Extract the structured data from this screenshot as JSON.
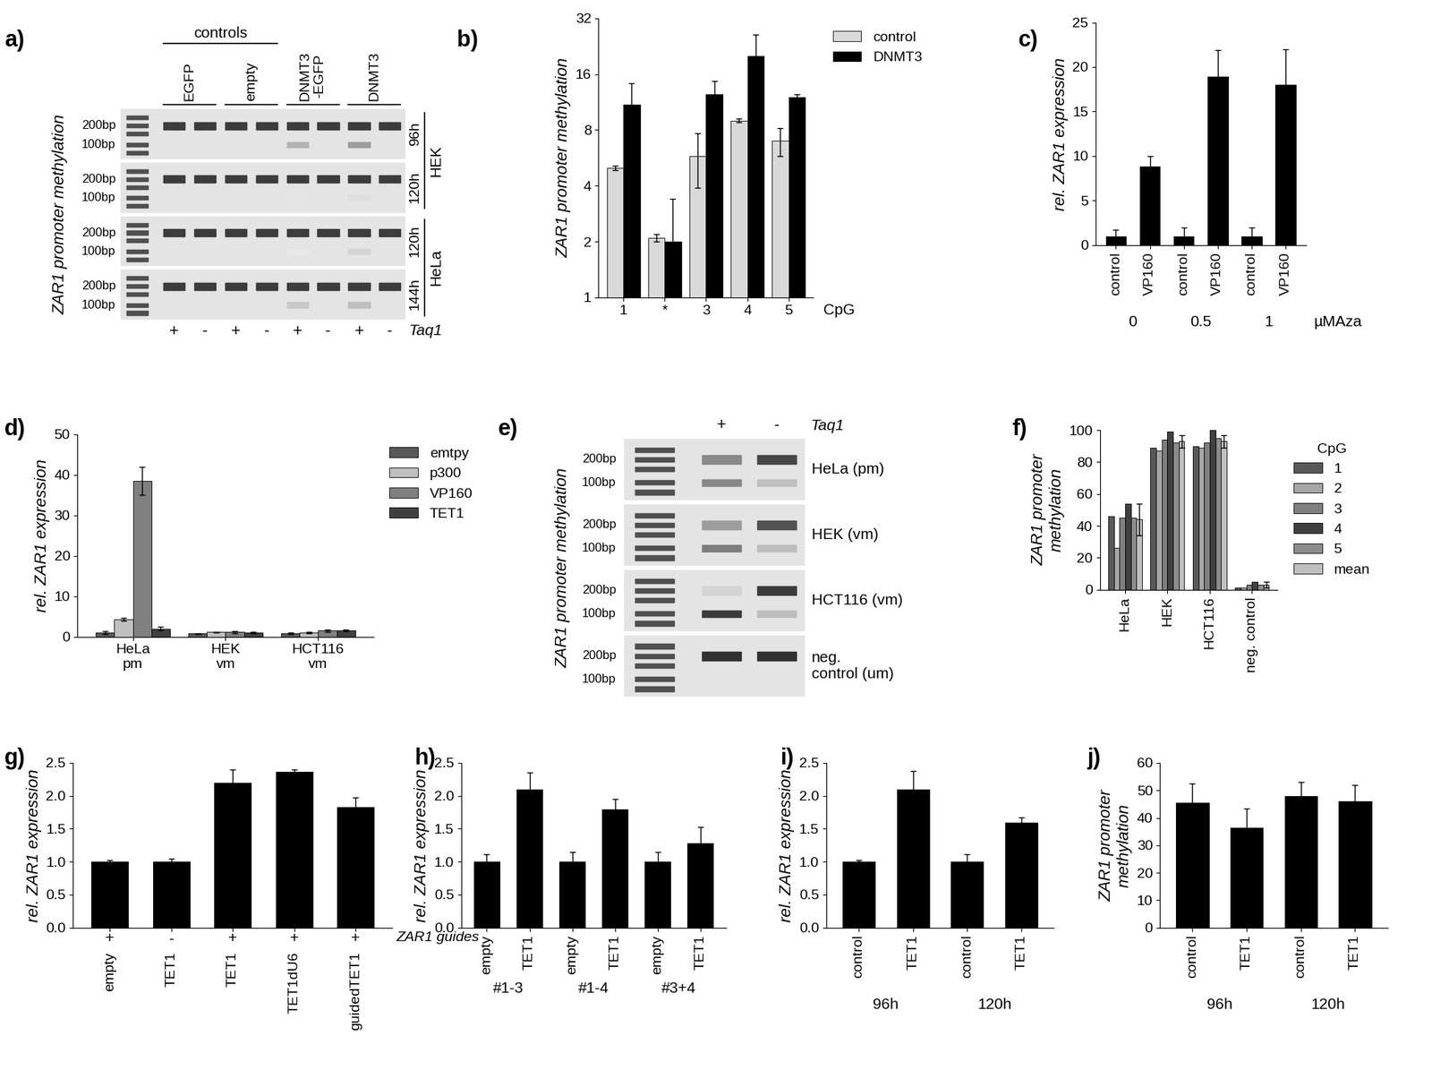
{
  "chart_data": [
    {
      "type": "gel",
      "title": "a)",
      "ylabel": "ZAR1 promoter methylation",
      "marker_labels": [
        "200bp",
        "100bp"
      ],
      "lanes": [
        "+",
        "-",
        "+",
        "-",
        "+",
        "-",
        "+",
        "-"
      ],
      "lane_axis_label": "Taq1",
      "column_groups": [
        "EGFP",
        "empty",
        "DNMT3\n-EGFP",
        "DNMT3"
      ],
      "column_supergroup": {
        "label": "controls",
        "groups": 2
      },
      "rows": [
        {
          "label": "96h",
          "upper": [
            0.9,
            0.9,
            0.9,
            0.9,
            0.9,
            0.9,
            0.9,
            0.9
          ],
          "lower": [
            0,
            0,
            0,
            0,
            0.35,
            0,
            0.45,
            0
          ]
        },
        {
          "label": "120h",
          "upper": [
            0.9,
            0.9,
            0.9,
            0.9,
            0.9,
            0.9,
            0.9,
            0.9
          ],
          "lower": [
            0,
            0,
            0,
            0,
            0.12,
            0,
            0.15,
            0
          ]
        },
        {
          "label": "120h",
          "upper": [
            0.9,
            0.9,
            0.9,
            0.9,
            0.9,
            0.9,
            0.9,
            0.9
          ],
          "lower": [
            0,
            0,
            0,
            0,
            0.1,
            0,
            0.2,
            0
          ]
        },
        {
          "label": "144h",
          "upper": [
            0.9,
            0.9,
            0.9,
            0.9,
            0.9,
            0.9,
            0.9,
            0.9
          ],
          "lower": [
            0,
            0,
            0,
            0,
            0.25,
            0,
            0.3,
            0
          ]
        }
      ],
      "row_groups": [
        {
          "label": "HEK",
          "rows": 2
        },
        {
          "label": "HeLa",
          "rows": 2
        }
      ]
    },
    {
      "type": "bar",
      "title": "b)",
      "ylabel": "ZAR1 promoter methylation",
      "log": true,
      "categories": [
        "1",
        "*",
        "3",
        "4",
        "5"
      ],
      "xlabel": "CpG",
      "series": [
        {
          "name": "control",
          "color": "#d9d9d9",
          "values": [
            5,
            2.1,
            5.8,
            9,
            7
          ],
          "errors": [
            0.15,
            0.1,
            1.9,
            0.2,
            1.2
          ]
        },
        {
          "name": "DNMT3",
          "color": "#000000",
          "values": [
            11,
            2,
            12.5,
            20,
            12
          ],
          "errors": [
            3.3,
            1.4,
            2.2,
            6,
            0.4
          ]
        }
      ],
      "ylim": [
        1,
        32
      ],
      "yticks": [
        1,
        2,
        4,
        8,
        16,
        32
      ],
      "legend": "upper left"
    },
    {
      "type": "bar",
      "title": "c)",
      "ylabel": "rel. ZAR1 expression",
      "categories": [
        "control",
        "VP160",
        "control",
        "VP160",
        "control",
        "VP160"
      ],
      "group_labels": [
        "0",
        "0.5",
        "1"
      ],
      "group_axis_label": "µMAza",
      "series": [
        {
          "color": "#000000",
          "values": [
            1,
            8.8,
            1,
            18.9,
            1,
            18
          ],
          "errors": [
            0.7,
            1.2,
            1,
            3,
            1,
            4
          ]
        }
      ],
      "ylim": [
        0,
        25
      ],
      "yticks": [
        0,
        5,
        10,
        15,
        20,
        25
      ]
    },
    {
      "type": "bar",
      "title": "d)",
      "ylabel": "rel. ZAR1 expression",
      "categories": [
        "HeLa\npm",
        "HEK\nvm",
        "HCT116\nvm"
      ],
      "series": [
        {
          "name": "emtpy",
          "color": "#595959",
          "values": [
            1,
            0.8,
            0.8
          ],
          "errors": [
            0.3,
            0.1,
            0.2
          ]
        },
        {
          "name": "p300",
          "color": "#bfbfbf",
          "values": [
            4.3,
            1.1,
            1
          ],
          "errors": [
            0.4,
            0.1,
            0.1
          ]
        },
        {
          "name": "VP160",
          "color": "#808080",
          "values": [
            38.5,
            1.1,
            1.5
          ],
          "errors": [
            3.5,
            0.2,
            0.3
          ]
        },
        {
          "name": "TET1",
          "color": "#404040",
          "values": [
            2,
            1,
            1.5
          ],
          "errors": [
            0.4,
            0.1,
            0.2
          ]
        }
      ],
      "ylim": [
        0,
        50
      ],
      "yticks": [
        0,
        10,
        20,
        30,
        40,
        50
      ],
      "legend": "upper left"
    },
    {
      "type": "gel",
      "title": "e)",
      "ylabel": "ZAR1 promoter methylation",
      "marker_labels": [
        "200bp",
        "100bp"
      ],
      "lanes": [
        "+",
        "-"
      ],
      "lane_axis_label": "Taq1",
      "rows": [
        {
          "label": "HeLa (pm)",
          "upper": [
            0.55,
            0.85
          ],
          "lower": [
            0.55,
            0.3
          ]
        },
        {
          "label": "HEK (vm)",
          "upper": [
            0.45,
            0.8
          ],
          "lower": [
            0.6,
            0.3
          ]
        },
        {
          "label": "HCT116 (vm)",
          "upper": [
            0.2,
            0.9
          ],
          "lower": [
            0.9,
            0.3
          ]
        },
        {
          "label": "neg.\ncontrol (um)",
          "upper": [
            0.95,
            0.95
          ],
          "lower": [
            0,
            0
          ]
        }
      ]
    },
    {
      "type": "bar",
      "title": "f)",
      "ylabel": "ZAR1 promoter\nmethylation",
      "categories": [
        "HeLa",
        "HEK",
        "HCT116",
        "neg. control"
      ],
      "legend_title": "CpG",
      "series": [
        {
          "name": "1",
          "color": "#595959",
          "values": [
            46,
            89,
            90,
            1
          ]
        },
        {
          "name": "2",
          "color": "#a6a6a6",
          "values": [
            26,
            87,
            89,
            1
          ]
        },
        {
          "name": "3",
          "color": "#7f7f7f",
          "values": [
            45,
            94,
            92,
            3
          ]
        },
        {
          "name": "4",
          "color": "#404040",
          "values": [
            54,
            99,
            100,
            5
          ]
        },
        {
          "name": "5",
          "color": "#8c8c8c",
          "values": [
            45,
            92,
            95,
            3
          ]
        },
        {
          "name": "mean",
          "color": "#bfbfbf",
          "values": [
            44,
            93,
            93,
            3
          ],
          "errors": [
            10,
            4,
            4,
            2
          ]
        }
      ],
      "ylim": [
        0,
        100
      ],
      "yticks": [
        0,
        20,
        40,
        60,
        80,
        100
      ],
      "legend": "upper left"
    },
    {
      "type": "bar",
      "title": "g)",
      "ylabel": "rel. ZAR1 expression",
      "categories": [
        "empty",
        "TET1",
        "TET1",
        "TET1dU6",
        "guidedTET1"
      ],
      "sublabels": [
        "+",
        "-",
        "+",
        "+",
        "+"
      ],
      "sublabel_axis_label": "ZAR1 guides",
      "series": [
        {
          "color": "#000000",
          "values": [
            1.0,
            1.0,
            2.2,
            2.37,
            1.83
          ],
          "errors": [
            0.03,
            0.05,
            0.2,
            0.03,
            0.15
          ]
        }
      ],
      "ylim": [
        0,
        2.5
      ],
      "yticks": [
        {
          "value": 0,
          "label": "0.0"
        },
        0.5,
        {
          "value": 1,
          "label": "1.0"
        },
        1.5,
        {
          "value": 2,
          "label": "2.0"
        },
        2.5
      ]
    },
    {
      "type": "bar",
      "title": "h)",
      "ylabel": "rel. ZAR1 expression",
      "categories": [
        "empty",
        "TET1",
        "empty",
        "TET1",
        "empty",
        "TET1"
      ],
      "group_labels": [
        "#1-3",
        "#1-4",
        "#3+4"
      ],
      "series": [
        {
          "color": "#000000",
          "values": [
            1,
            2.1,
            1,
            1.8,
            1,
            1.28
          ],
          "errors": [
            0.12,
            0.25,
            0.15,
            0.15,
            0.15,
            0.25
          ]
        }
      ],
      "ylim": [
        0,
        2.5
      ],
      "yticks": [
        {
          "value": 0,
          "label": "0.0"
        },
        0.5,
        {
          "value": 1,
          "label": "1.0"
        },
        1.5,
        {
          "value": 2,
          "label": "2.0"
        },
        2.5
      ]
    },
    {
      "type": "bar",
      "title": "i)",
      "ylabel": "rel. ZAR1 expression",
      "categories": [
        "control",
        "TET1",
        "control",
        "TET1"
      ],
      "group_labels": [
        "96h",
        "120h"
      ],
      "series": [
        {
          "color": "#000000",
          "values": [
            1,
            2.1,
            1,
            1.6
          ],
          "errors": [
            0.03,
            0.28,
            0.12,
            0.07
          ]
        }
      ],
      "ylim": [
        0,
        2.5
      ],
      "yticks": [
        {
          "value": 0,
          "label": "0.0"
        },
        0.5,
        {
          "value": 1,
          "label": "1.0"
        },
        1.5,
        {
          "value": 2,
          "label": "2.0"
        },
        2.5
      ]
    },
    {
      "type": "bar",
      "title": "j)",
      "ylabel": "ZAR1 promoter\nmethylation",
      "categories": [
        "control",
        "TET1",
        "control",
        "TET1"
      ],
      "group_labels": [
        "96h",
        "120h"
      ],
      "series": [
        {
          "color": "#000000",
          "values": [
            45.5,
            36.5,
            48,
            46
          ],
          "errors": [
            7,
            7,
            5,
            6
          ]
        }
      ],
      "ylim": [
        0,
        60
      ],
      "yticks": [
        0,
        10,
        20,
        30,
        40,
        50,
        60
      ]
    }
  ]
}
